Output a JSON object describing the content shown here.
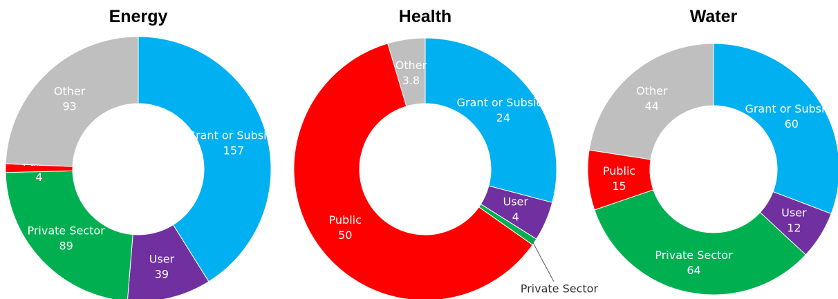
{
  "chart_data": [
    {
      "type": "donut",
      "title": "Energy",
      "categories": [
        "Grant or Subsidy",
        "User",
        "Private Sector",
        "Public",
        "Other"
      ],
      "values": [
        157,
        39,
        89,
        4,
        93
      ],
      "colors": [
        "#00b0f0",
        "#7030a0",
        "#00b050",
        "#ff0000",
        "#bfbfbf"
      ]
    },
    {
      "type": "donut",
      "title": "Health",
      "categories": [
        "Grant or Subsidy",
        "User",
        "Private Sector",
        "Public",
        "Other"
      ],
      "values": [
        24,
        4,
        0.7,
        50,
        3.8
      ],
      "colors": [
        "#00b0f0",
        "#7030a0",
        "#00b050",
        "#ff0000",
        "#bfbfbf"
      ]
    },
    {
      "type": "donut",
      "title": "Water",
      "categories": [
        "Grant or Subsidy",
        "User",
        "Private Sector",
        "Public",
        "Other"
      ],
      "values": [
        60,
        12,
        64,
        15,
        44
      ],
      "colors": [
        "#00b0f0",
        "#7030a0",
        "#00b050",
        "#ff0000",
        "#bfbfbf"
      ]
    }
  ]
}
